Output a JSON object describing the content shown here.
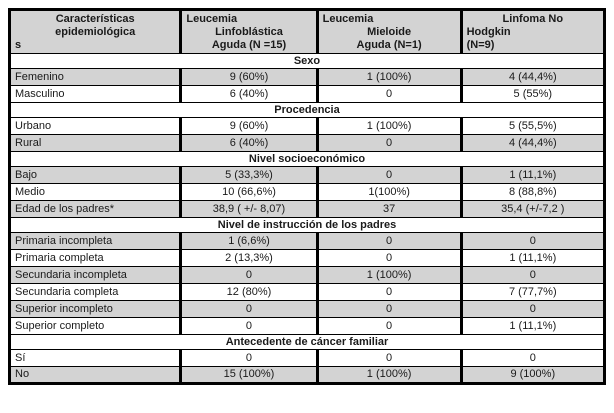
{
  "table": {
    "colors": {
      "shaded_row": "#d3d3d3",
      "header_bg": "#d3d3d3",
      "section_bg": "#ffffff",
      "border": "#000000"
    },
    "column_widths_pct": [
      28.8,
      22.9,
      24.2,
      24.1
    ],
    "columns": [
      {
        "name": "caracteristicas-epidemiologicas",
        "lines": [
          {
            "text": "Características",
            "align": "center"
          },
          {
            "text": "epidemiológica",
            "align": "center"
          },
          {
            "text": "s",
            "align": "left"
          }
        ]
      },
      {
        "name": "leucemia-linfoblastica-aguda",
        "lines": [
          {
            "text": "Leucemia",
            "align": "left"
          },
          {
            "text": "Linfoblástica",
            "align": "center"
          },
          {
            "text": "Aguda (N =15)",
            "align": "center"
          }
        ]
      },
      {
        "name": "leucemia-mieloide-aguda",
        "lines": [
          {
            "text": "Leucemia",
            "align": "left"
          },
          {
            "text": "Mieloide",
            "align": "center"
          },
          {
            "text": "Aguda (N=1)",
            "align": "center"
          }
        ]
      },
      {
        "name": "linfoma-no-hodgkin",
        "lines": [
          {
            "text": "Linfoma No",
            "align": "center"
          },
          {
            "text": "Hodgkin",
            "align": "left"
          },
          {
            "text": "(N=9)",
            "align": "left"
          }
        ]
      }
    ],
    "sections": [
      {
        "title": "Sexo",
        "rows": [
          {
            "label": "Femenino",
            "values": [
              "9 (60%)",
              "1 (100%)",
              "4 (44,4%)"
            ],
            "shaded": true
          },
          {
            "label": "Masculino",
            "values": [
              "6 (40%)",
              "0",
              "5 (55%)"
            ],
            "shaded": false
          }
        ]
      },
      {
        "title": "Procedencia",
        "rows": [
          {
            "label": "Urbano",
            "values": [
              "9 (60%)",
              "1 (100%)",
              "5 (55,5%)"
            ],
            "shaded": false
          },
          {
            "label": "Rural",
            "values": [
              "6 (40%)",
              "0",
              "4 (44,4%)"
            ],
            "shaded": true
          }
        ]
      },
      {
        "title": "Nivel socioeconómico",
        "rows": [
          {
            "label": "Bajo",
            "values": [
              "5 (33,3%)",
              "0",
              "1 (11,1%)"
            ],
            "shaded": true
          },
          {
            "label": "Medio",
            "values": [
              "10 (66,6%)",
              "1(100%)",
              "8 (88,8%)"
            ],
            "shaded": false
          },
          {
            "label": "Edad de los padres*",
            "values": [
              "38,9 ( +/- 8,07)",
              "37",
              "35,4 (+/-7,2 )"
            ],
            "shaded": true
          }
        ]
      },
      {
        "title": "Nivel de instrucción de los padres",
        "rows": [
          {
            "label": "Primaria incompleta",
            "values": [
              "1 (6,6%)",
              "0",
              "0"
            ],
            "shaded": true
          },
          {
            "label": "Primaria completa",
            "values": [
              "2 (13,3%)",
              "0",
              "1 (11,1%)"
            ],
            "shaded": false
          },
          {
            "label": "Secundaria incompleta",
            "values": [
              "0",
              "1 (100%)",
              "0"
            ],
            "shaded": true
          },
          {
            "label": "Secundaria completa",
            "values": [
              "12 (80%)",
              "0",
              "7 (77,7%)"
            ],
            "shaded": false
          },
          {
            "label": "Superior incompleto",
            "values": [
              "0",
              "0",
              "0"
            ],
            "shaded": true
          },
          {
            "label": "Superior completo",
            "values": [
              "0",
              "0",
              "1 (11,1%)"
            ],
            "shaded": false
          }
        ]
      },
      {
        "title": "Antecedente de cáncer familiar",
        "rows": [
          {
            "label": "Sí",
            "values": [
              "0",
              "0",
              "0"
            ],
            "shaded": false
          },
          {
            "label": "No",
            "values": [
              "15 (100%)",
              "1 (100%)",
              "9 (100%)"
            ],
            "shaded": true
          }
        ]
      }
    ]
  }
}
